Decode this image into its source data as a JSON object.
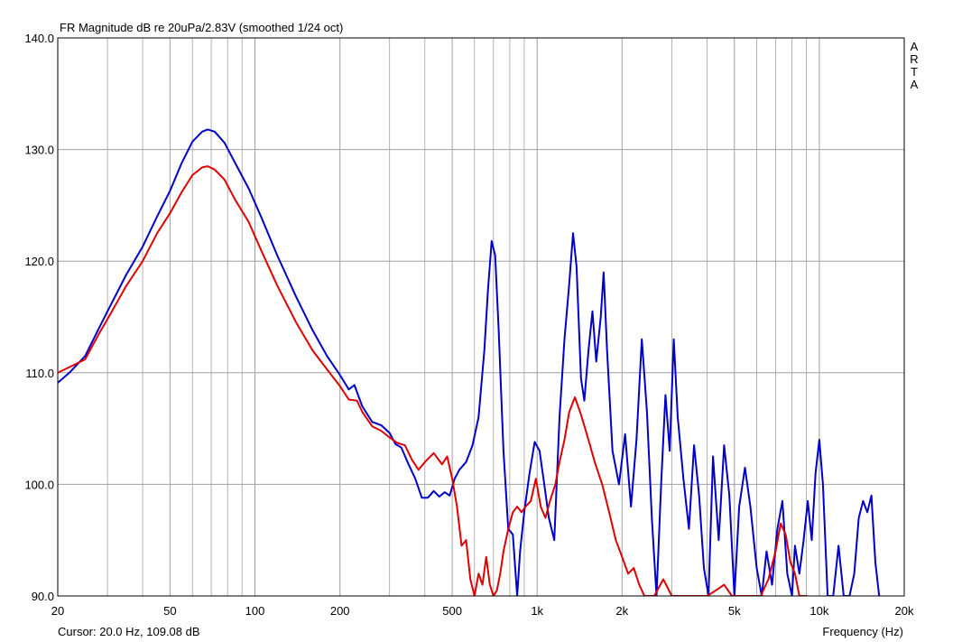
{
  "chart_data": {
    "type": "line",
    "title": "FR Magnitude dB re 20uPa/2.83V (smoothed 1/24 oct)",
    "side_label": [
      "A",
      "R",
      "T",
      "A"
    ],
    "xlabel": "Frequency (Hz)",
    "ylabel": "",
    "x_scale": "log",
    "xlim": [
      20,
      20000
    ],
    "ylim": [
      90,
      140
    ],
    "x_tick_values": [
      20,
      50,
      100,
      200,
      500,
      1000,
      2000,
      5000,
      10000,
      20000
    ],
    "x_tick_labels": [
      "20",
      "50",
      "100",
      "200",
      "500",
      "1k",
      "2k",
      "5k",
      "10k",
      "20k"
    ],
    "y_tick_values": [
      90,
      100,
      110,
      120,
      130,
      140
    ],
    "y_tick_labels": [
      "90.0",
      "100.0",
      "110.0",
      "120.0",
      "130.0",
      "140.0"
    ],
    "grid": true,
    "colors": {
      "series_1": "#0000c8",
      "series_2": "#e00000",
      "grid": "#a0a0a0"
    },
    "series": [
      {
        "color": "#0000c8",
        "points": [
          [
            20,
            109.1
          ],
          [
            22,
            110.0
          ],
          [
            25,
            111.5
          ],
          [
            28,
            114.0
          ],
          [
            30,
            115.5
          ],
          [
            35,
            118.8
          ],
          [
            40,
            121.3
          ],
          [
            45,
            124.0
          ],
          [
            50,
            126.3
          ],
          [
            55,
            128.8
          ],
          [
            60,
            130.7
          ],
          [
            65,
            131.6
          ],
          [
            68,
            131.8
          ],
          [
            72,
            131.6
          ],
          [
            78,
            130.6
          ],
          [
            85,
            128.8
          ],
          [
            95,
            126.5
          ],
          [
            105,
            124.0
          ],
          [
            120,
            120.5
          ],
          [
            140,
            116.8
          ],
          [
            160,
            113.8
          ],
          [
            180,
            111.5
          ],
          [
            200,
            109.8
          ],
          [
            215,
            108.5
          ],
          [
            225,
            108.9
          ],
          [
            240,
            107.0
          ],
          [
            260,
            105.6
          ],
          [
            280,
            105.3
          ],
          [
            300,
            104.6
          ],
          [
            315,
            103.6
          ],
          [
            330,
            103.3
          ],
          [
            350,
            101.8
          ],
          [
            370,
            100.5
          ],
          [
            390,
            98.8
          ],
          [
            410,
            98.8
          ],
          [
            430,
            99.4
          ],
          [
            450,
            98.9
          ],
          [
            470,
            99.3
          ],
          [
            490,
            99.0
          ],
          [
            510,
            100.5
          ],
          [
            530,
            101.3
          ],
          [
            560,
            102.0
          ],
          [
            590,
            103.5
          ],
          [
            620,
            106.0
          ],
          [
            650,
            112.0
          ],
          [
            670,
            117.5
          ],
          [
            690,
            121.8
          ],
          [
            710,
            120.5
          ],
          [
            730,
            114.0
          ],
          [
            760,
            103.0
          ],
          [
            790,
            96.0
          ],
          [
            820,
            95.5
          ],
          [
            850,
            90.0
          ],
          [
            870,
            94.0
          ],
          [
            900,
            97.5
          ],
          [
            940,
            101.0
          ],
          [
            980,
            103.8
          ],
          [
            1020,
            103.0
          ],
          [
            1060,
            100.0
          ],
          [
            1100,
            97.0
          ],
          [
            1150,
            95.0
          ],
          [
            1200,
            106.0
          ],
          [
            1250,
            113.0
          ],
          [
            1300,
            118.0
          ],
          [
            1340,
            122.5
          ],
          [
            1380,
            119.5
          ],
          [
            1430,
            109.5
          ],
          [
            1470,
            107.5
          ],
          [
            1520,
            112.0
          ],
          [
            1570,
            115.5
          ],
          [
            1620,
            111.0
          ],
          [
            1680,
            115.0
          ],
          [
            1720,
            119.0
          ],
          [
            1770,
            112.0
          ],
          [
            1850,
            103.0
          ],
          [
            1950,
            100.0
          ],
          [
            2050,
            104.5
          ],
          [
            2150,
            98.0
          ],
          [
            2250,
            104.0
          ],
          [
            2350,
            113.0
          ],
          [
            2450,
            106.5
          ],
          [
            2550,
            97.0
          ],
          [
            2650,
            90.0
          ],
          [
            2750,
            100.0
          ],
          [
            2850,
            108.0
          ],
          [
            2950,
            103.0
          ],
          [
            3050,
            113.0
          ],
          [
            3150,
            106.0
          ],
          [
            3300,
            100.5
          ],
          [
            3450,
            96.0
          ],
          [
            3600,
            103.5
          ],
          [
            3750,
            99.0
          ],
          [
            3900,
            92.5
          ],
          [
            4050,
            90.0
          ],
          [
            4200,
            102.5
          ],
          [
            4400,
            95.0
          ],
          [
            4600,
            103.5
          ],
          [
            4800,
            99.0
          ],
          [
            5000,
            90.0
          ],
          [
            5200,
            98.0
          ],
          [
            5450,
            101.5
          ],
          [
            5700,
            98.0
          ],
          [
            6000,
            92.5
          ],
          [
            6250,
            90.0
          ],
          [
            6500,
            94.0
          ],
          [
            6800,
            91.0
          ],
          [
            7100,
            96.0
          ],
          [
            7400,
            98.5
          ],
          [
            7700,
            92.0
          ],
          [
            8000,
            90.0
          ],
          [
            8200,
            94.5
          ],
          [
            8500,
            92.0
          ],
          [
            8800,
            95.0
          ],
          [
            9100,
            98.5
          ],
          [
            9400,
            95.0
          ],
          [
            9700,
            101.0
          ],
          [
            10000,
            104.0
          ],
          [
            10300,
            100.0
          ],
          [
            10700,
            90.0
          ],
          [
            11200,
            90.0
          ],
          [
            11700,
            94.5
          ],
          [
            12200,
            90.0
          ],
          [
            12800,
            90.0
          ],
          [
            13300,
            92.0
          ],
          [
            13800,
            97.0
          ],
          [
            14300,
            98.5
          ],
          [
            14800,
            97.5
          ],
          [
            15300,
            99.0
          ],
          [
            15800,
            93.0
          ],
          [
            16300,
            90.0
          ]
        ]
      },
      {
        "color": "#e00000",
        "points": [
          [
            20,
            110.0
          ],
          [
            22,
            110.5
          ],
          [
            25,
            111.2
          ],
          [
            28,
            113.5
          ],
          [
            30,
            114.8
          ],
          [
            35,
            117.8
          ],
          [
            40,
            120.0
          ],
          [
            45,
            122.5
          ],
          [
            50,
            124.3
          ],
          [
            55,
            126.2
          ],
          [
            60,
            127.7
          ],
          [
            65,
            128.4
          ],
          [
            68,
            128.5
          ],
          [
            72,
            128.2
          ],
          [
            78,
            127.3
          ],
          [
            85,
            125.5
          ],
          [
            95,
            123.5
          ],
          [
            105,
            121.0
          ],
          [
            120,
            117.8
          ],
          [
            140,
            114.5
          ],
          [
            160,
            112.0
          ],
          [
            180,
            110.3
          ],
          [
            200,
            108.8
          ],
          [
            215,
            107.6
          ],
          [
            230,
            107.5
          ],
          [
            240,
            106.5
          ],
          [
            260,
            105.2
          ],
          [
            280,
            104.8
          ],
          [
            300,
            104.2
          ],
          [
            320,
            103.7
          ],
          [
            340,
            103.5
          ],
          [
            360,
            102.2
          ],
          [
            380,
            101.3
          ],
          [
            400,
            102.0
          ],
          [
            430,
            102.8
          ],
          [
            460,
            101.8
          ],
          [
            480,
            102.5
          ],
          [
            500,
            100.5
          ],
          [
            520,
            98.0
          ],
          [
            540,
            94.5
          ],
          [
            560,
            95.0
          ],
          [
            580,
            91.5
          ],
          [
            600,
            90.0
          ],
          [
            620,
            92.0
          ],
          [
            640,
            91.0
          ],
          [
            660,
            93.5
          ],
          [
            680,
            91.0
          ],
          [
            700,
            90.0
          ],
          [
            720,
            90.5
          ],
          [
            740,
            92.0
          ],
          [
            760,
            94.0
          ],
          [
            790,
            96.0
          ],
          [
            820,
            97.5
          ],
          [
            850,
            98.0
          ],
          [
            880,
            97.5
          ],
          [
            910,
            98.0
          ],
          [
            950,
            98.5
          ],
          [
            990,
            100.5
          ],
          [
            1030,
            98.0
          ],
          [
            1070,
            97.0
          ],
          [
            1110,
            98.5
          ],
          [
            1160,
            100.0
          ],
          [
            1200,
            102.0
          ],
          [
            1250,
            104.0
          ],
          [
            1300,
            106.5
          ],
          [
            1360,
            107.8
          ],
          [
            1420,
            106.5
          ],
          [
            1480,
            105.0
          ],
          [
            1540,
            103.5
          ],
          [
            1600,
            102.0
          ],
          [
            1700,
            100.0
          ],
          [
            1800,
            97.5
          ],
          [
            1900,
            95.0
          ],
          [
            2000,
            93.5
          ],
          [
            2100,
            92.0
          ],
          [
            2200,
            92.5
          ],
          [
            2300,
            91.0
          ],
          [
            2400,
            90.0
          ],
          [
            2600,
            90.0
          ],
          [
            2800,
            91.5
          ],
          [
            3000,
            90.0
          ],
          [
            3200,
            90.0
          ],
          [
            3500,
            90.0
          ],
          [
            3800,
            90.0
          ],
          [
            4000,
            90.0
          ],
          [
            4300,
            90.5
          ],
          [
            4600,
            91.0
          ],
          [
            4900,
            90.0
          ],
          [
            5300,
            90.0
          ],
          [
            5800,
            90.0
          ],
          [
            6200,
            90.0
          ],
          [
            6600,
            91.5
          ],
          [
            7000,
            94.0
          ],
          [
            7300,
            96.5
          ],
          [
            7600,
            95.5
          ],
          [
            7900,
            93.0
          ],
          [
            8200,
            92.0
          ],
          [
            8500,
            90.0
          ],
          [
            9000,
            90.0
          ]
        ]
      }
    ],
    "cursor_readout": "Cursor: 20.0 Hz, 109.08 dB"
  }
}
